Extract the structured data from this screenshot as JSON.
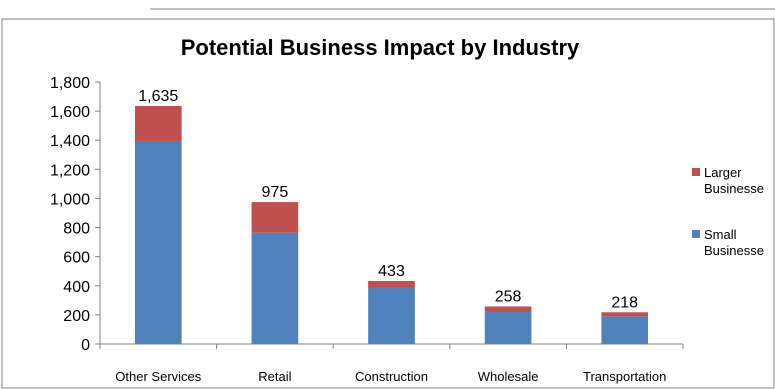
{
  "chart_data": {
    "type": "bar",
    "stacked": true,
    "title": "Potential Business Impact by Industry",
    "xlabel": "",
    "ylabel": "",
    "categories": [
      "Other Services",
      "Retail",
      "Construction",
      "Wholesale",
      "Transportation"
    ],
    "series": [
      {
        "name": "Small Businesses",
        "legend_label_visible": "Small Businesse",
        "color": "#4f81bd",
        "values": [
          1395,
          765,
          385,
          220,
          190
        ]
      },
      {
        "name": "Larger Businesses",
        "legend_label_visible": "Larger Businesse",
        "color": "#c0504d",
        "values": [
          240,
          210,
          48,
          38,
          28
        ]
      }
    ],
    "totals": [
      1635,
      975,
      433,
      258,
      218
    ],
    "total_labels": [
      "1,635",
      "975",
      "433",
      "258",
      "218"
    ],
    "ylim": [
      0,
      1800
    ],
    "yticks": [
      0,
      200,
      400,
      600,
      800,
      1000,
      1200,
      1400,
      1600,
      1800
    ],
    "ytick_labels": [
      "0",
      "200",
      "400",
      "600",
      "800",
      "1,000",
      "1,200",
      "1,400",
      "1,600",
      "1,800"
    ],
    "grid": false,
    "legend_position": "right"
  }
}
